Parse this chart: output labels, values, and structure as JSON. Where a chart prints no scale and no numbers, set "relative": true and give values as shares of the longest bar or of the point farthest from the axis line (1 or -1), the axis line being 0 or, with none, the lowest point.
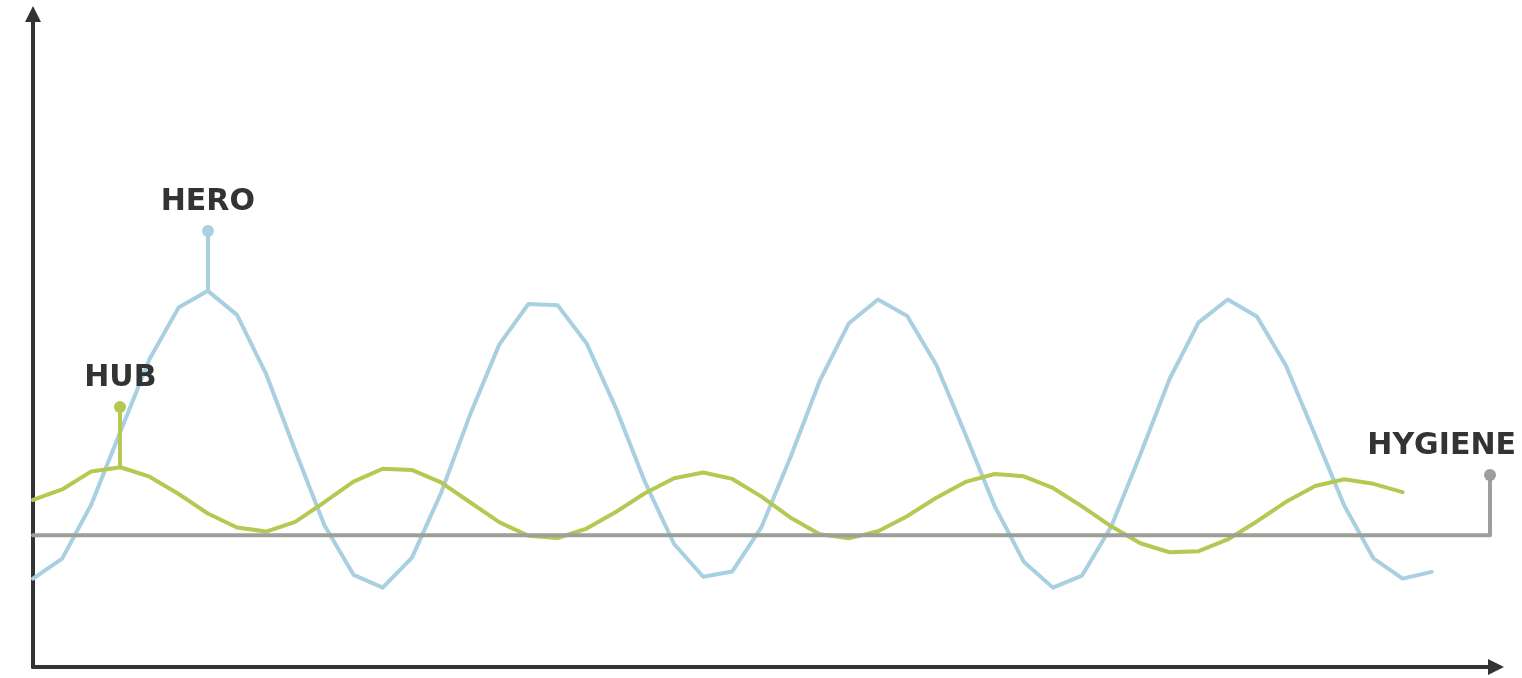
{
  "chart_data": {
    "type": "line",
    "relative": true,
    "grid": false,
    "legend": false,
    "marker": "none",
    "line_style": "solid",
    "categories": [
      null,
      null,
      null,
      null,
      null,
      null,
      null,
      null,
      null,
      null,
      null,
      null,
      null,
      null,
      null,
      null,
      null,
      null,
      null,
      null,
      null,
      null,
      null,
      null,
      null,
      null,
      null,
      null,
      null,
      null,
      null,
      null,
      null,
      null,
      null,
      null,
      null,
      null,
      null,
      null,
      null,
      null,
      null,
      null,
      null,
      null,
      null,
      null,
      null,
      null,
      null
    ],
    "series": [
      {
        "name": "HERO",
        "color": "#a8d0e0",
        "values": [
          0.235,
          0.288,
          0.432,
          0.626,
          0.819,
          0.956,
          1.0,
          0.936,
          0.779,
          0.575,
          0.377,
          0.245,
          0.211,
          0.29,
          0.462,
          0.671,
          0.857,
          0.965,
          0.962,
          0.86,
          0.689,
          0.492,
          0.327,
          0.24,
          0.254,
          0.372,
          0.559,
          0.761,
          0.914,
          0.977,
          0.933,
          0.803,
          0.618,
          0.428,
          0.28,
          0.211,
          0.243,
          0.373,
          0.565,
          0.765,
          0.916,
          0.977,
          0.932,
          0.801,
          0.616,
          0.429,
          0.289,
          0.235,
          0.253,
          null,
          null
        ]
      },
      {
        "name": "HUB",
        "color": "#b5c952",
        "values": [
          0.444,
          0.472,
          0.52,
          0.531,
          0.506,
          0.46,
          0.408,
          0.371,
          0.36,
          0.386,
          0.438,
          0.493,
          0.527,
          0.524,
          0.491,
          0.438,
          0.385,
          0.349,
          0.343,
          0.368,
          0.412,
          0.462,
          0.502,
          0.517,
          0.5,
          0.453,
          0.397,
          0.353,
          0.342,
          0.361,
          0.401,
          0.45,
          0.492,
          0.513,
          0.507,
          0.476,
          0.427,
          0.374,
          0.329,
          0.305,
          0.308,
          0.339,
          0.387,
          0.439,
          0.481,
          0.499,
          0.487,
          0.465,
          null,
          null,
          null
        ]
      },
      {
        "name": "HYGIENE",
        "color": "#9e9e9a",
        "values": [
          0.35,
          0.35,
          0.35,
          0.35,
          0.35,
          0.35,
          0.35,
          0.35,
          0.35,
          0.35,
          0.35,
          0.35,
          0.35,
          0.35,
          0.35,
          0.35,
          0.35,
          0.35,
          0.35,
          0.35,
          0.35,
          0.35,
          0.35,
          0.35,
          0.35,
          0.35,
          0.35,
          0.35,
          0.35,
          0.35,
          0.35,
          0.35,
          0.35,
          0.35,
          0.35,
          0.35,
          0.35,
          0.35,
          0.35,
          0.35,
          0.35,
          0.35,
          0.35,
          0.35,
          0.35,
          0.35,
          0.35,
          0.35,
          0.35,
          0.35,
          0.35
        ]
      }
    ]
  }
}
